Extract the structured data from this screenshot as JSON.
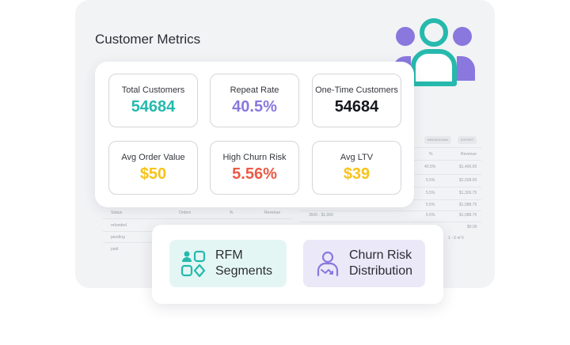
{
  "header": {
    "title": "Customer Metrics"
  },
  "colors": {
    "teal": "#26b9ad",
    "purple": "#8a78de",
    "dark": "#15171c",
    "yellow": "#f7c31a",
    "red": "#ea5a45"
  },
  "metrics": [
    {
      "label": "Total Customers",
      "value": "54684",
      "color": "teal"
    },
    {
      "label": "Repeat Rate",
      "value": "40.5%",
      "color": "purple"
    },
    {
      "label": "One-Time Customers",
      "value": "54684",
      "color": "dark"
    },
    {
      "label": "Avg Order Value",
      "value": "$50",
      "color": "yellow"
    },
    {
      "label": "High Churn Risk",
      "value": "5.56%",
      "color": "red"
    },
    {
      "label": "Avg LTV",
      "value": "$39",
      "color": "yellow"
    }
  ],
  "actions": {
    "rfm": {
      "line1": "RFM",
      "line2": "Segments",
      "icon": "segments-icon"
    },
    "churn": {
      "line1": "Churn Risk",
      "line2": "Distribution",
      "icon": "churn-user-icon"
    }
  },
  "decor": {
    "hero_icon": "customers-group-icon"
  },
  "background_tables": {
    "right_pills": [
      "BREAKDOWN",
      "EXPORT"
    ],
    "right_headers": [
      "%",
      "Revenue"
    ],
    "right_rows": [
      [
        "",
        "40.5%",
        "$1,400.00"
      ],
      [
        "",
        "5.5%",
        "$2,028.00"
      ],
      [
        "",
        "5.5%",
        "$1,326.75"
      ],
      [
        "",
        "5.5%",
        "$1,088.75"
      ],
      [
        "3500 - $1,000",
        "5.5%",
        "$1,088.75"
      ],
      [
        "",
        "",
        "$0.00"
      ]
    ],
    "right_footer": "1 - 6 of 6",
    "left_headers": [
      "Status",
      "Orders",
      "%",
      "Revenue"
    ],
    "left_rows": [
      "refunded",
      "pending",
      "paid"
    ]
  }
}
